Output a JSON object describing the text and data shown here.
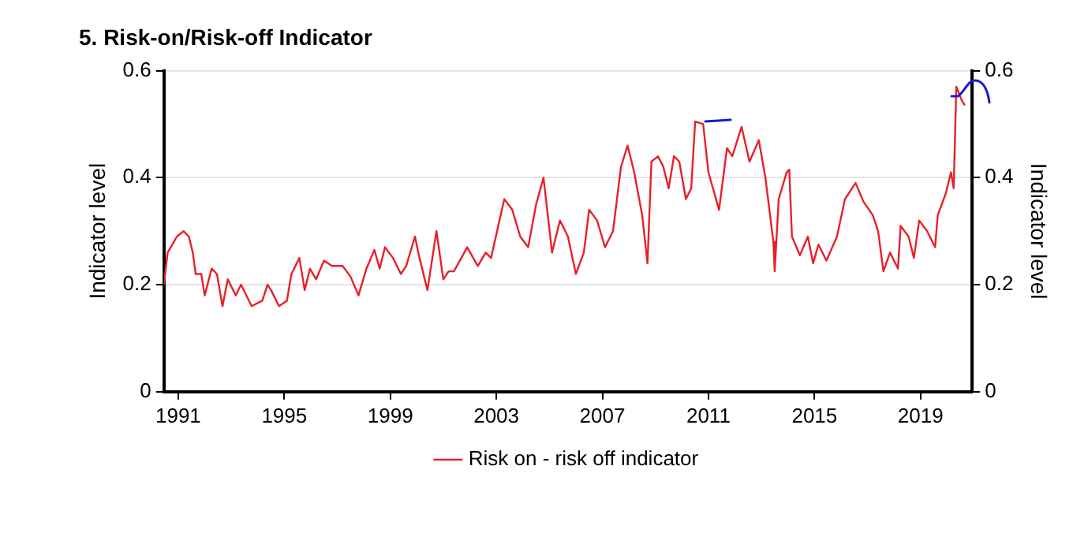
{
  "chart_data": {
    "type": "line",
    "title": "5. Risk-on/Risk-off Indicator",
    "ylabel": "Indicator level",
    "y2label": "Indicator level",
    "x": [
      1990.46,
      1990.6,
      1990.95,
      1991.2,
      1991.4,
      1991.55,
      1991.66,
      1991.87,
      1992.0,
      1992.26,
      1992.46,
      1992.67,
      1992.87,
      1993.17,
      1993.37,
      1993.77,
      1994.17,
      1994.37,
      1994.5,
      1994.8,
      1995.1,
      1995.27,
      1995.57,
      1995.77,
      1995.97,
      1996.2,
      1996.5,
      1996.8,
      1997.2,
      1997.5,
      1997.8,
      1998.1,
      1998.4,
      1998.6,
      1998.8,
      1999.1,
      1999.4,
      1999.6,
      1999.93,
      2000.1,
      2000.4,
      2000.74,
      2001.0,
      2001.2,
      2001.4,
      2001.9,
      2002.3,
      2002.6,
      2002.8,
      2003.3,
      2003.6,
      2003.9,
      2004.2,
      2004.5,
      2004.78,
      2005.1,
      2005.4,
      2005.7,
      2006.0,
      2006.3,
      2006.5,
      2006.8,
      2007.1,
      2007.4,
      2007.7,
      2007.95,
      2008.2,
      2008.5,
      2008.7,
      2008.85,
      2009.1,
      2009.3,
      2009.5,
      2009.7,
      2009.9,
      2010.15,
      2010.35,
      2010.5,
      2010.8,
      2011.0,
      2011.4,
      2011.7,
      2011.9,
      2012.25,
      2012.55,
      2012.9,
      2013.15,
      2013.45,
      2013.5,
      2013.65,
      2013.95,
      2014.05,
      2014.15,
      2014.45,
      2014.75,
      2014.95,
      2015.15,
      2015.45,
      2015.85,
      2016.15,
      2016.55,
      2016.85,
      2017.2,
      2017.4,
      2017.6,
      2017.85,
      2018.15,
      2018.25,
      2018.55,
      2018.75,
      2018.95,
      2019.25,
      2019.55,
      2019.65,
      2019.95,
      2020.15,
      2020.25,
      2020.35,
      2020.55,
      2020.67
    ],
    "series": [
      {
        "name": "Risk on - risk off indicator",
        "color": "#e8202a",
        "values": [
          0.2,
          0.26,
          0.29,
          0.3,
          0.29,
          0.26,
          0.22,
          0.22,
          0.18,
          0.23,
          0.22,
          0.16,
          0.21,
          0.18,
          0.2,
          0.16,
          0.17,
          0.2,
          0.19,
          0.16,
          0.17,
          0.22,
          0.25,
          0.19,
          0.23,
          0.21,
          0.245,
          0.235,
          0.235,
          0.215,
          0.18,
          0.23,
          0.265,
          0.23,
          0.27,
          0.25,
          0.22,
          0.235,
          0.29,
          0.25,
          0.19,
          0.3,
          0.21,
          0.225,
          0.225,
          0.27,
          0.235,
          0.26,
          0.25,
          0.36,
          0.34,
          0.29,
          0.27,
          0.35,
          0.4,
          0.26,
          0.32,
          0.29,
          0.22,
          0.26,
          0.34,
          0.32,
          0.27,
          0.3,
          0.42,
          0.46,
          0.41,
          0.33,
          0.24,
          0.43,
          0.44,
          0.42,
          0.38,
          0.44,
          0.43,
          0.36,
          0.38,
          0.505,
          0.5,
          0.41,
          0.34,
          0.455,
          0.44,
          0.495,
          0.43,
          0.47,
          0.4,
          0.28,
          0.225,
          0.36,
          0.41,
          0.415,
          0.29,
          0.255,
          0.29,
          0.24,
          0.275,
          0.245,
          0.29,
          0.36,
          0.39,
          0.355,
          0.33,
          0.3,
          0.225,
          0.26,
          0.23,
          0.31,
          0.29,
          0.25,
          0.32,
          0.3,
          0.27,
          0.33,
          0.37,
          0.41,
          0.38,
          0.57,
          0.545,
          0.535
        ]
      }
    ],
    "xlim": [
      1990.46,
      2020.95
    ],
    "xticks": [
      1991,
      1995,
      1999,
      2003,
      2007,
      2011,
      2015,
      2019
    ],
    "ylim": [
      0,
      0.6
    ],
    "yticks": [
      0,
      0.2,
      0.4,
      0.6
    ],
    "y2lim": [
      0,
      0.6
    ],
    "y2ticks": [
      0,
      0.2,
      0.4,
      0.6
    ],
    "grid": "y",
    "legend": "bottom",
    "marker": "none",
    "line_style": "solid"
  }
}
